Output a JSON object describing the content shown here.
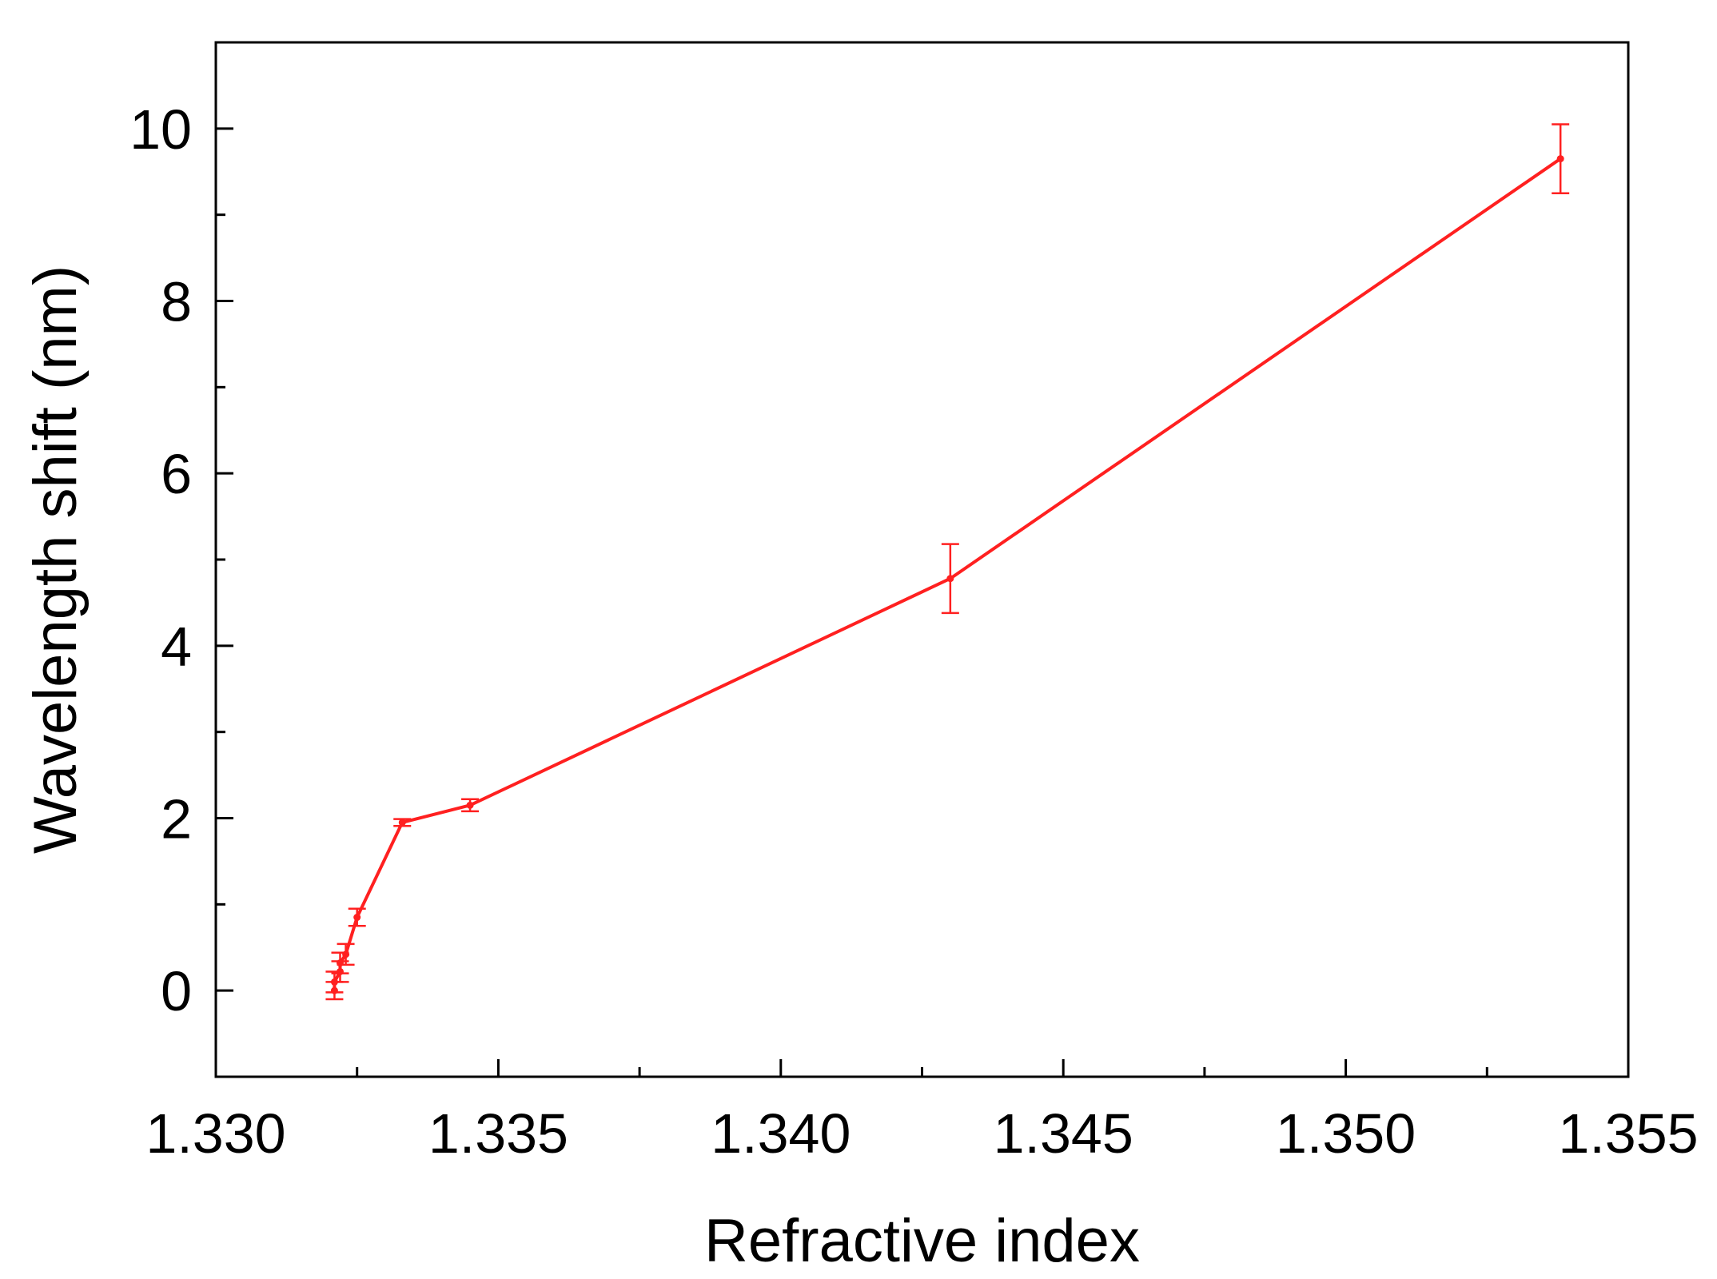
{
  "chart_data": {
    "type": "line",
    "title": "",
    "xlabel": "Refractive index",
    "ylabel": "Wavelength shift (nm)",
    "xlim": [
      1.33,
      1.355
    ],
    "ylim": [
      -1,
      11
    ],
    "x_ticks": [
      "1.330",
      "1.335",
      "1.340",
      "1.345",
      "1.350",
      "1.355"
    ],
    "y_ticks": [
      "0",
      "2",
      "4",
      "6",
      "8",
      "10"
    ],
    "grid": false,
    "legend": "none",
    "colors": {
      "series": "#ff2020",
      "axis": "#000000"
    },
    "series": [
      {
        "x": [
          1.3321,
          1.3321,
          1.3322,
          1.3322,
          1.3323,
          1.3325,
          1.3333,
          1.3345,
          1.343,
          1.3538
        ],
        "y": [
          0.0,
          0.1,
          0.22,
          0.32,
          0.42,
          0.85,
          1.95,
          2.15,
          4.78,
          9.65
        ],
        "yerr": [
          0.1,
          0.12,
          0.12,
          0.12,
          0.12,
          0.1,
          0.04,
          0.07,
          0.4,
          0.4
        ]
      }
    ]
  }
}
